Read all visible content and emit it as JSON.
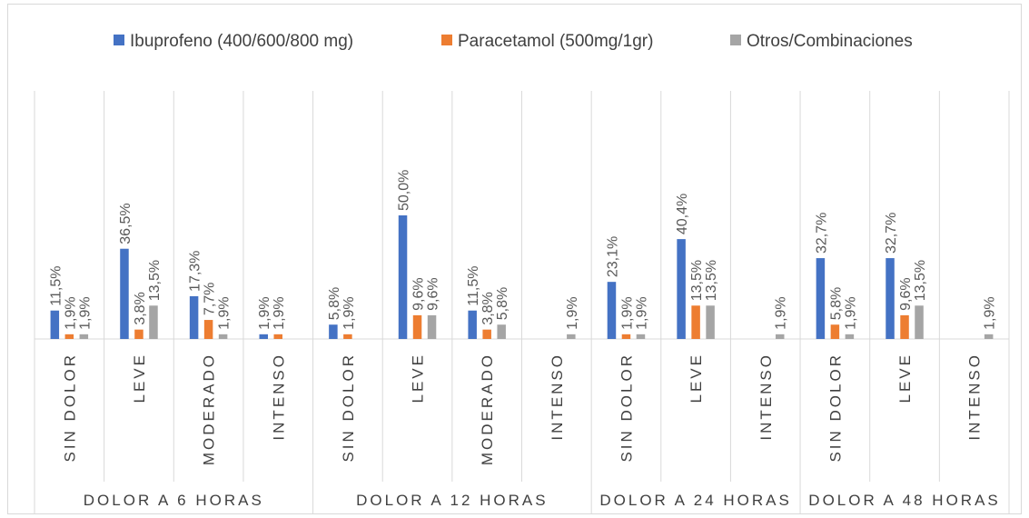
{
  "chart_data": {
    "type": "bar",
    "ylim": [
      0,
      60
    ],
    "grid": false,
    "legend_position": "top",
    "series": [
      {
        "name": "Ibuprofeno (400/600/800 mg)",
        "color": "#4472c4",
        "values": [
          11.5,
          36.5,
          17.3,
          1.9,
          5.8,
          50.0,
          11.5,
          null,
          23.1,
          40.4,
          null,
          32.7,
          32.7,
          null
        ],
        "labels": [
          "11,5%",
          "36,5%",
          "17,3%",
          "1,9%",
          "5,8%",
          "50,0%",
          "11,5%",
          "",
          "23,1%",
          "40,4%",
          "",
          "32,7%",
          "32,7%",
          ""
        ]
      },
      {
        "name": "Paracetamol (500mg/1gr)",
        "color": "#ed7d31",
        "values": [
          1.9,
          3.8,
          7.7,
          1.9,
          1.9,
          9.6,
          3.8,
          null,
          1.9,
          13.5,
          null,
          5.8,
          9.6,
          null
        ],
        "labels": [
          "1,9%",
          "3,8%",
          "7,7%",
          "1,9%",
          "1,9%",
          "9,6%",
          "3,8%",
          "",
          "1,9%",
          "13,5%",
          "",
          "5,8%",
          "9,6%",
          ""
        ]
      },
      {
        "name": "Otros/Combinaciones",
        "color": "#a5a5a5",
        "values": [
          1.9,
          13.5,
          1.9,
          null,
          null,
          9.6,
          5.8,
          1.9,
          1.9,
          13.5,
          1.9,
          1.9,
          13.5,
          1.9
        ],
        "labels": [
          "1,9%",
          "13,5%",
          "1,9%",
          "",
          "",
          "9,6%",
          "5,8%",
          "1,9%",
          "1,9%",
          "13,5%",
          "1,9%",
          "1,9%",
          "13,5%",
          "1,9%"
        ]
      }
    ],
    "categories": [
      "SIN DOLOR",
      "LEVE",
      "MODERADO",
      "INTENSO",
      "SIN DOLOR",
      "LEVE",
      "MODERADO",
      "INTENSO",
      "SIN DOLOR",
      "LEVE",
      "INTENSO",
      "SIN DOLOR",
      "LEVE",
      "INTENSO"
    ],
    "groups": [
      {
        "label": "DOLOR A 6 HORAS",
        "count": 4
      },
      {
        "label": "DOLOR A 12 HORAS",
        "count": 4
      },
      {
        "label": "DOLOR A 24 HORAS",
        "count": 3
      },
      {
        "label": "DOLOR A 48 HORAS",
        "count": 3
      }
    ]
  }
}
